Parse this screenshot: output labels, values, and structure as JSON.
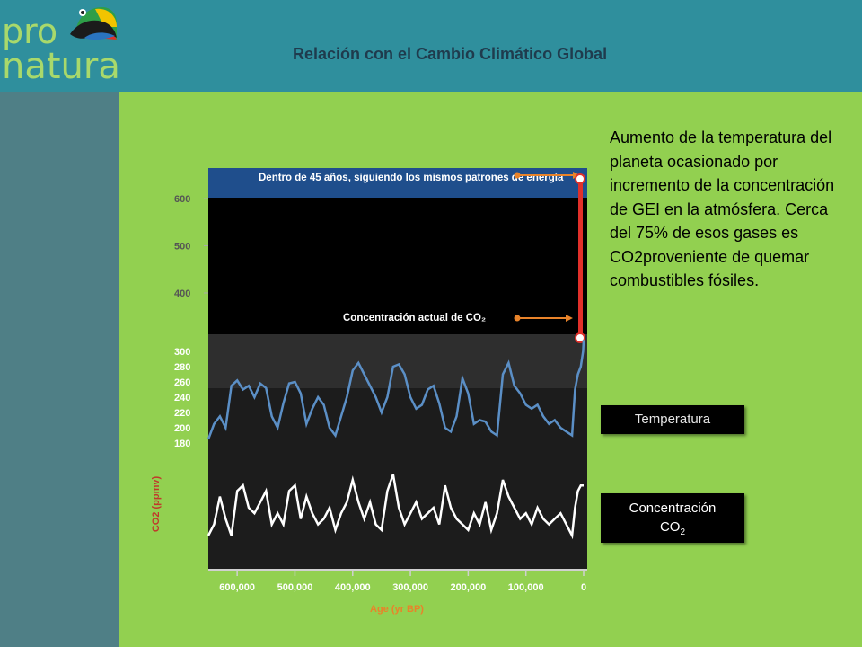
{
  "header": {
    "title": "Relación con el Cambio Climático Global"
  },
  "logo": {
    "line1": "pro",
    "line2": "natura"
  },
  "description": "Aumento de la temperatura del planeta ocasionado por incremento de la concentración de GEI en la atmósfera. Cerca del 75% de esos gases es CO2proveniente de quemar combustibles fósiles.",
  "buttons": {
    "temperatura": "Temperatura",
    "concentracion": "Concentración",
    "co2_main": "CO",
    "co2_sub": "2"
  },
  "colors": {
    "background": "#92d050",
    "header": "#2f8f9d",
    "sidebar": "#4f7f86",
    "co2_line": "#5b8fc6",
    "temp_line": "#ffffff",
    "arrow": "#e8832a",
    "future_bar": "#e0302a",
    "label_orange": "#e8832a"
  },
  "chart_data": {
    "type": "line",
    "xlabel": "Age (yr BP)",
    "ylabel": "CO2 (ppmv)",
    "x_ticks": [
      "600,000",
      "500,000",
      "400,000",
      "300,000",
      "200,000",
      "100,000",
      "0"
    ],
    "y_ticks_upper": [
      "600",
      "500",
      "400"
    ],
    "y_ticks_lower": [
      "300",
      "280",
      "260",
      "240",
      "220",
      "200",
      "180"
    ],
    "annotations": {
      "future": "Dentro de 45 años, siguiendo los mismos patrones de energía",
      "current": "Concentración actual de CO₂"
    },
    "series": [
      {
        "x": [
          650000,
          640000,
          630000,
          620000,
          610000,
          600000,
          590000,
          580000,
          570000,
          560000,
          550000,
          540000,
          530000,
          520000,
          510000,
          500000,
          490000,
          480000,
          470000,
          460000,
          450000,
          440000,
          430000,
          420000,
          410000,
          400000,
          390000,
          380000,
          370000,
          360000,
          350000,
          340000,
          330000,
          320000,
          310000,
          300000,
          290000,
          280000,
          270000,
          260000,
          250000,
          240000,
          230000,
          220000,
          210000,
          200000,
          190000,
          180000,
          170000,
          160000,
          150000,
          140000,
          130000,
          120000,
          110000,
          100000,
          90000,
          80000,
          70000,
          60000,
          50000,
          40000,
          30000,
          20000,
          15000,
          10000,
          5000,
          1000,
          0
        ],
        "values": [
          185,
          205,
          215,
          200,
          255,
          262,
          250,
          255,
          240,
          258,
          252,
          215,
          200,
          232,
          258,
          260,
          245,
          205,
          225,
          240,
          230,
          200,
          190,
          215,
          240,
          275,
          285,
          270,
          255,
          240,
          220,
          240,
          280,
          283,
          270,
          240,
          225,
          230,
          250,
          255,
          232,
          200,
          195,
          215,
          265,
          245,
          205,
          210,
          208,
          195,
          190,
          270,
          285,
          255,
          245,
          230,
          225,
          230,
          215,
          205,
          210,
          200,
          195,
          190,
          250,
          270,
          280,
          300,
          315
        ]
      },
      {
        "x": [
          650000,
          640000,
          630000,
          620000,
          610000,
          600000,
          590000,
          580000,
          570000,
          560000,
          550000,
          540000,
          530000,
          520000,
          510000,
          500000,
          490000,
          480000,
          470000,
          460000,
          450000,
          440000,
          430000,
          420000,
          410000,
          400000,
          390000,
          380000,
          370000,
          360000,
          350000,
          340000,
          330000,
          320000,
          310000,
          300000,
          290000,
          280000,
          270000,
          260000,
          250000,
          240000,
          230000,
          220000,
          210000,
          200000,
          190000,
          180000,
          170000,
          160000,
          150000,
          140000,
          130000,
          120000,
          110000,
          100000,
          90000,
          80000,
          70000,
          60000,
          50000,
          40000,
          30000,
          20000,
          15000,
          10000,
          5000,
          1000,
          0
        ],
        "values": [
          -9,
          -7,
          -2,
          -6,
          -9,
          -1,
          0,
          -4,
          -5,
          -3,
          -1,
          -7,
          -5,
          -7,
          -1,
          0,
          -6,
          -2,
          -5,
          -7,
          -6,
          -4,
          -8,
          -5,
          -3,
          1,
          -3,
          -6,
          -3,
          -7,
          -8,
          -1,
          2,
          -4,
          -7,
          -5,
          -3,
          -6,
          -5,
          -4,
          -7,
          0,
          -4,
          -6,
          -7,
          -8,
          -5,
          -7,
          -3,
          -8,
          -5,
          1,
          -2,
          -4,
          -6,
          -5,
          -7,
          -4,
          -6,
          -7,
          -6,
          -5,
          -7,
          -9,
          -4,
          -1,
          0,
          0,
          0
        ]
      }
    ]
  }
}
